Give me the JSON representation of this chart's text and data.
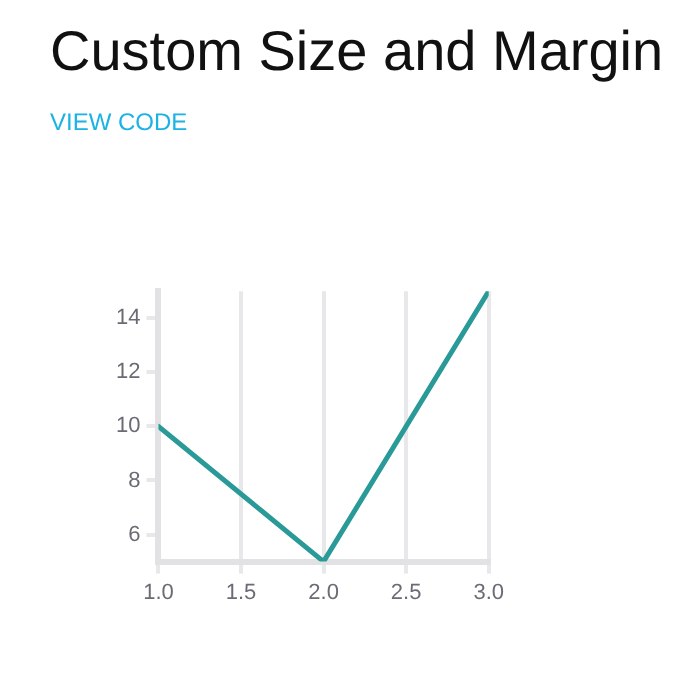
{
  "chart_data": {
    "type": "line",
    "title": "Custom Size and Margin",
    "annotations": [
      "VIEW CODE"
    ],
    "x": [
      1,
      2,
      3
    ],
    "series": [
      {
        "color": "#2a9a98",
        "values": [
          10,
          5,
          15
        ]
      }
    ],
    "xlim": [
      1,
      3
    ],
    "xticks": [
      {
        "value": 1,
        "label": "1.0"
      },
      {
        "value": 1.5,
        "label": "1.5"
      },
      {
        "value": 2,
        "label": "2.0"
      },
      {
        "value": 2.5,
        "label": "2.5"
      },
      {
        "value": 3,
        "label": "3.0"
      }
    ],
    "ylim": [
      5,
      15
    ],
    "yticks": [
      6,
      8,
      10,
      12,
      14
    ],
    "grid": "x",
    "legend": false,
    "marker": "none",
    "line_style": "solid"
  }
}
